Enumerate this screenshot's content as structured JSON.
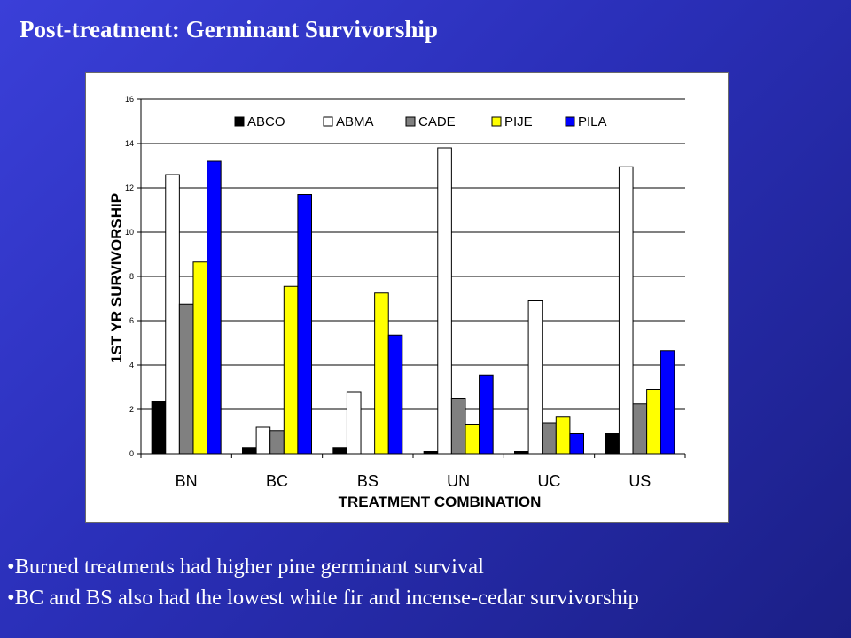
{
  "slide": {
    "title": "Post-treatment: Germinant Survivorship",
    "bullets": [
      "Burned treatments had higher pine germinant survival",
      "BC and BS also had the lowest white fir and incense-cedar survivorship"
    ]
  },
  "chart_data": {
    "type": "bar",
    "title": "",
    "xlabel": "TREATMENT COMBINATION",
    "ylabel": "1ST YR SURVIVORSHIP",
    "ylim": [
      0,
      16
    ],
    "yticks": [
      0,
      2,
      4,
      6,
      8,
      10,
      12,
      14,
      16
    ],
    "grid": true,
    "legend_position": "top",
    "categories": [
      "BN",
      "BC",
      "BS",
      "UN",
      "UC",
      "US"
    ],
    "series": [
      {
        "name": "ABCO",
        "color": "#000000",
        "values": [
          2.35,
          0.25,
          0.25,
          0.1,
          0.1,
          0.9
        ]
      },
      {
        "name": "ABMA",
        "color": "#ffffff",
        "values": [
          12.6,
          1.2,
          2.8,
          13.8,
          6.9,
          12.95
        ]
      },
      {
        "name": "CADE",
        "color": "#808080",
        "values": [
          6.75,
          1.05,
          0,
          2.5,
          1.4,
          2.25
        ]
      },
      {
        "name": "PIJE",
        "color": "#ffff00",
        "values": [
          8.65,
          7.55,
          7.25,
          1.3,
          1.65,
          2.9
        ]
      },
      {
        "name": "PILA",
        "color": "#0000ff",
        "values": [
          13.2,
          11.7,
          5.35,
          3.55,
          0.9,
          4.65
        ]
      }
    ]
  }
}
